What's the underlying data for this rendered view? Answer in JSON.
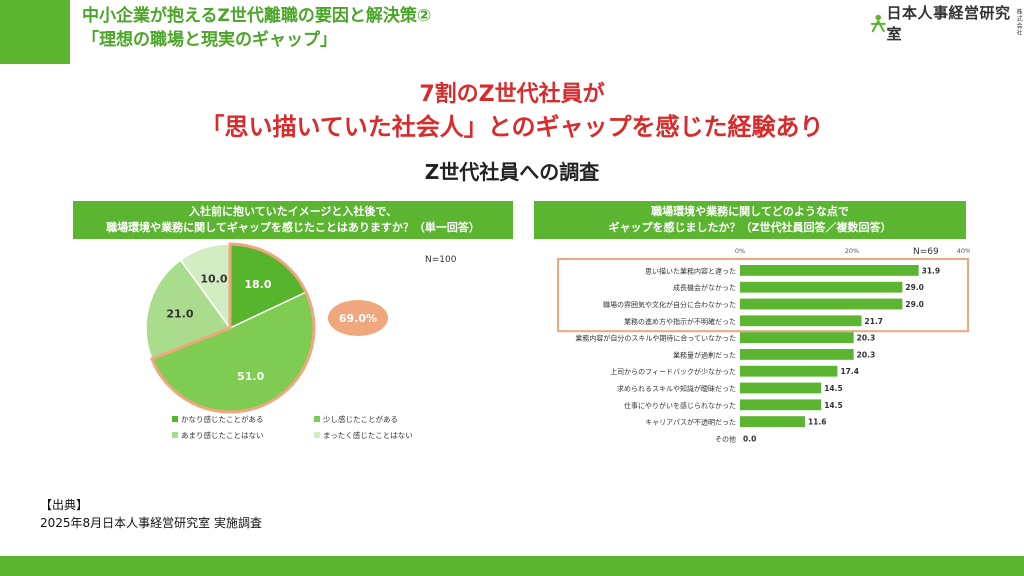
{
  "header": {
    "title_line1": "中小企業が抱えるZ世代離職の要因と解決策②",
    "title_line2": "「理想の職場と現実のギャップ」"
  },
  "logo": {
    "text": "日本人事経営研究室",
    "sub": "株式会社"
  },
  "headline": {
    "line1": "7割のZ世代社員が",
    "line2": "「思い描いていた社会人」とのギャップを感じた経験あり"
  },
  "subtitle": "Z世代社員への調査",
  "left_panel": {
    "heading_line1": "入社前に抱いていたイメージと入社後で、",
    "heading_line2": "職場環境や業務に関してギャップを感じたことはありますか？（単一回答）",
    "n_label": "N=100",
    "callout": "69.0%"
  },
  "right_panel": {
    "heading_line1": "職場環境や業務に関してどのような点で",
    "heading_line2": "ギャップを感じましたか？（Z世代社員回答／複数回答）",
    "n_label": "N=69"
  },
  "colors": {
    "brand_green": "#5cb531",
    "bar_green": "#5cb531",
    "pie_dark": "#57b42d",
    "pie_mid": "#7fcc53",
    "pie_light": "#a9dc8c",
    "pie_lightest": "#d3edc3",
    "highlight": "#f0a77e",
    "headline_red": "#d92b2b"
  },
  "chart_data": [
    {
      "type": "pie",
      "values": [
        18.0,
        51.0,
        21.0,
        10.0
      ],
      "labels": [
        "かなり感じたことがある",
        "少し感じたことがある",
        "あまり感じたことはない",
        "まったく感じたことはない"
      ],
      "legend_placement": "bottom"
    },
    {
      "type": "bar",
      "orientation": "horizontal",
      "categories": [
        "思い描いた業務内容と違った",
        "成長機会がなかった",
        "職場の雰囲気や文化が自分に合わなかった",
        "業務の進め方や指示が不明確だった",
        "業務内容が自分のスキルや期待に合っていなかった",
        "業務量が過剰だった",
        "上司からのフィードバックが少なかった",
        "求められるスキルや知識が曖昧だった",
        "仕事にやりがいを感じられなかった",
        "キャリアパスが不透明だった",
        "その他"
      ],
      "values": [
        31.9,
        29.0,
        29.0,
        21.7,
        20.3,
        20.3,
        17.4,
        14.5,
        14.5,
        11.6,
        0.0
      ],
      "xlim": [
        0,
        40
      ],
      "xticks": [
        "0%",
        "20%",
        "40%"
      ],
      "highlighted_count": 4
    }
  ],
  "source": {
    "label": "【出典】",
    "text": "2025年8月日本人事経営研究室 実施調査"
  }
}
